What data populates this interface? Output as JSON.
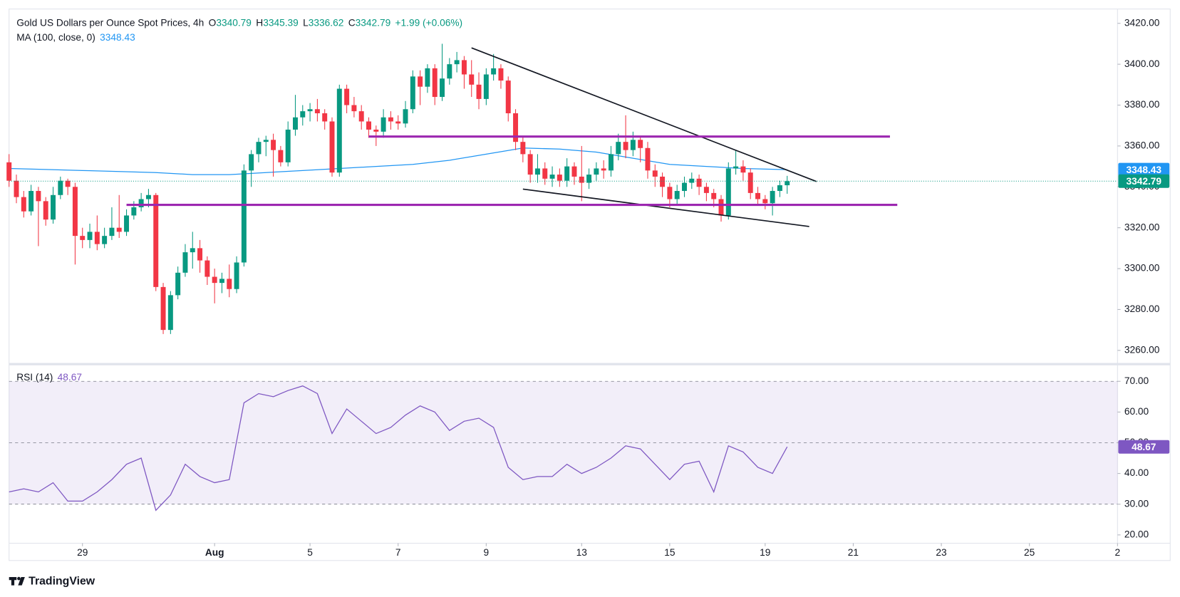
{
  "header": {
    "title": "Gold US Dollars per Ounce Spot Prices, 4h",
    "open_label": "O",
    "high_label": "H",
    "low_label": "L",
    "close_label": "C",
    "change": "+1.99 (+0.06%)",
    "ma_label": "MA (100, close, 0)",
    "rsi_label": "RSI (14)"
  },
  "footer": {
    "brand": "TradingView"
  },
  "chart_data": [
    {
      "type": "candlestick",
      "up_color": "#089981",
      "down_color": "#f23645",
      "xlim": [
        0,
        151
      ],
      "ylim": [
        3254,
        3427
      ],
      "yticks": [
        {
          "value": 3260,
          "label": "3260.00"
        },
        {
          "value": 3280,
          "label": "3280.00"
        },
        {
          "value": 3300,
          "label": "3300.00"
        },
        {
          "value": 3320,
          "label": "3320.00"
        },
        {
          "value": 3340,
          "label": "3340.00"
        },
        {
          "value": 3360,
          "label": "3360.00"
        },
        {
          "value": 3380,
          "label": "3380.00"
        },
        {
          "value": 3400,
          "label": "3400.00"
        },
        {
          "value": 3420,
          "label": "3420.00"
        }
      ],
      "open": [
        3352,
        3343,
        3335,
        3328,
        3338,
        3333,
        3324,
        3336,
        3343,
        3340,
        3316,
        3314,
        3318,
        3312,
        3316,
        3320,
        3318,
        3326,
        3330,
        3334,
        3336,
        3291,
        3270,
        3287,
        3298,
        3308,
        3310,
        3304,
        3296,
        3293,
        3295,
        3290,
        3303,
        3348,
        3356,
        3362,
        3363,
        3358,
        3352,
        3368,
        3374,
        3377,
        3378,
        3376,
        3372,
        3347,
        3388,
        3380,
        3377,
        3372,
        3368,
        3367,
        3374,
        3372,
        3371,
        3378,
        3394,
        3389,
        3398,
        3384,
        3393,
        3400,
        3402,
        3395,
        3390,
        3383,
        3395,
        3398,
        3392,
        3376,
        3362,
        3356,
        3346,
        3349,
        3344,
        3346,
        3343,
        3350,
        3345,
        3342,
        3346,
        3349,
        3348,
        3356,
        3362,
        3358,
        3363,
        3359,
        3348,
        3345,
        3340,
        3334,
        3338,
        3342,
        3344,
        3340,
        3337,
        3334,
        3326,
        3349,
        3350,
        3347,
        3337,
        3334,
        3332,
        3338,
        3340.79
      ],
      "high": [
        3356,
        3346,
        3338,
        3341,
        3340,
        3335,
        3340,
        3345,
        3344,
        3342,
        3320,
        3322,
        3326,
        3320,
        3330,
        3336,
        3329,
        3333,
        3337,
        3339,
        3337,
        3293,
        3289,
        3301,
        3312,
        3318,
        3314,
        3306,
        3300,
        3298,
        3302,
        3306,
        3351,
        3358,
        3364,
        3365,
        3366,
        3360,
        3372,
        3385,
        3380,
        3381,
        3383,
        3378,
        3374,
        3390,
        3390,
        3384,
        3380,
        3374,
        3370,
        3378,
        3377,
        3375,
        3382,
        3397,
        3397,
        3400,
        3400,
        3410,
        3403,
        3406,
        3404,
        3402,
        3396,
        3398,
        3405,
        3400,
        3394,
        3378,
        3365,
        3358,
        3356,
        3352,
        3350,
        3349,
        3354,
        3352,
        3360,
        3349,
        3352,
        3353,
        3360,
        3366,
        3375,
        3367,
        3365,
        3362,
        3351,
        3347,
        3342,
        3341,
        3345,
        3347,
        3346,
        3342,
        3339,
        3336,
        3352,
        3358,
        3353,
        3349,
        3340,
        3336,
        3340,
        3343,
        3345.39
      ],
      "low": [
        3340,
        3332,
        3325,
        3326,
        3311,
        3321,
        3322,
        3334,
        3336,
        3302,
        3310,
        3310,
        3309,
        3310,
        3314,
        3315,
        3316,
        3324,
        3328,
        3330,
        3289,
        3268,
        3268,
        3285,
        3296,
        3300,
        3298,
        3292,
        3283,
        3288,
        3286,
        3288,
        3301,
        3340,
        3352,
        3355,
        3345,
        3350,
        3350,
        3365,
        3370,
        3372,
        3372,
        3368,
        3345,
        3345,
        3376,
        3374,
        3368,
        3364,
        3360,
        3364,
        3368,
        3368,
        3369,
        3376,
        3380,
        3386,
        3380,
        3382,
        3390,
        3396,
        3388,
        3384,
        3378,
        3380,
        3392,
        3388,
        3372,
        3358,
        3352,
        3342,
        3342,
        3341,
        3340,
        3340,
        3340,
        3341,
        3333,
        3339,
        3343,
        3344,
        3345,
        3353,
        3354,
        3355,
        3352,
        3344,
        3340,
        3335,
        3330,
        3331,
        3335,
        3339,
        3336,
        3333,
        3330,
        3323,
        3324,
        3346,
        3343,
        3334,
        3331,
        3329,
        3326,
        3335,
        3336.62
      ],
      "close": [
        3343,
        3335,
        3328,
        3338,
        3333,
        3324,
        3336,
        3343,
        3340,
        3316,
        3314,
        3318,
        3312,
        3316,
        3320,
        3318,
        3326,
        3330,
        3334,
        3336,
        3291,
        3270,
        3287,
        3298,
        3308,
        3310,
        3304,
        3296,
        3293,
        3295,
        3290,
        3303,
        3348,
        3356,
        3362,
        3363,
        3358,
        3352,
        3368,
        3374,
        3377,
        3378,
        3376,
        3372,
        3347,
        3388,
        3380,
        3377,
        3372,
        3368,
        3367,
        3374,
        3372,
        3371,
        3378,
        3394,
        3389,
        3398,
        3384,
        3393,
        3400,
        3402,
        3395,
        3390,
        3383,
        3395,
        3398,
        3392,
        3376,
        3362,
        3356,
        3346,
        3349,
        3344,
        3346,
        3343,
        3350,
        3345,
        3342,
        3346,
        3349,
        3348,
        3356,
        3362,
        3358,
        3363,
        3359,
        3348,
        3345,
        3340,
        3334,
        3338,
        3342,
        3344,
        3340,
        3337,
        3334,
        3326,
        3349,
        3350,
        3347,
        3337,
        3334,
        3332,
        3338,
        3340.79,
        3342.79
      ],
      "ma": {
        "color": "#2196f3",
        "x": [
          0,
          5,
          10,
          15,
          20,
          25,
          30,
          35,
          40,
          45,
          50,
          55,
          60,
          65,
          70,
          75,
          80,
          85,
          90,
          95,
          100,
          105,
          106
        ],
        "values": [
          3349,
          3348.5,
          3348,
          3347.5,
          3347,
          3346,
          3346,
          3347,
          3348,
          3349,
          3350,
          3351,
          3353,
          3356,
          3359,
          3358.5,
          3357,
          3354,
          3351,
          3350,
          3349,
          3348.5,
          3348.43
        ]
      },
      "trendlines": [
        {
          "color": "#131722",
          "x": [
            63,
            110
          ],
          "values": [
            3408,
            3342.6
          ]
        },
        {
          "color": "#131722",
          "x": [
            70,
            109
          ],
          "values": [
            3338.9,
            3320.6
          ]
        },
        {
          "color": "#9c27b0",
          "x": [
            49,
            120
          ],
          "values": [
            3364.6,
            3364.6
          ]
        },
        {
          "color": "#9c27b0",
          "x": [
            16,
            121
          ],
          "values": [
            3331.2,
            3331.2
          ]
        }
      ]
    },
    {
      "type": "line",
      "color": "#7e57c2",
      "xlim": [
        0,
        151
      ],
      "ylim": [
        17.3,
        75.1
      ],
      "yticks": [
        {
          "value": 20,
          "label": "20.00"
        },
        {
          "value": 30,
          "label": "30.00"
        },
        {
          "value": 40,
          "label": "40.00"
        },
        {
          "value": 50,
          "label": "50.00"
        },
        {
          "value": 60,
          "label": "60.00"
        },
        {
          "value": 70,
          "label": "70.00"
        }
      ],
      "band": [
        30,
        70
      ],
      "levels": [
        70,
        50,
        30
      ],
      "xticks": [
        {
          "value": 10,
          "label": "29"
        },
        {
          "value": 28,
          "label": "Aug"
        },
        {
          "value": 41,
          "label": "5"
        },
        {
          "value": 53,
          "label": "7"
        },
        {
          "value": 65,
          "label": "9"
        },
        {
          "value": 78,
          "label": "13"
        },
        {
          "value": 90,
          "label": "15"
        },
        {
          "value": 103,
          "label": "19"
        },
        {
          "value": 115,
          "label": "21"
        },
        {
          "value": 127,
          "label": "23"
        },
        {
          "value": 139,
          "label": "25"
        },
        {
          "value": 151,
          "label": "2"
        }
      ],
      "x": [
        0,
        2,
        4,
        6,
        8,
        10,
        12,
        14,
        16,
        18,
        20,
        22,
        24,
        26,
        28,
        30,
        32,
        34,
        36,
        38,
        40,
        42,
        44,
        46,
        48,
        50,
        52,
        54,
        56,
        58,
        60,
        62,
        64,
        66,
        68,
        70,
        72,
        74,
        76,
        78,
        80,
        82,
        84,
        86,
        88,
        90,
        92,
        94,
        96,
        98,
        100,
        102,
        104,
        106
      ],
      "values": [
        34,
        35,
        34,
        37,
        31,
        31,
        34,
        38,
        43,
        45,
        28,
        33,
        43,
        39,
        37,
        38,
        63,
        66,
        65,
        67,
        68.5,
        66,
        53,
        61,
        57,
        53,
        55,
        59,
        62,
        60,
        54,
        57,
        58,
        55,
        42,
        38,
        39,
        39,
        43,
        40,
        42,
        45,
        49,
        48,
        43,
        38,
        43,
        44,
        34,
        49,
        47,
        42,
        40,
        48.67
      ]
    }
  ]
}
